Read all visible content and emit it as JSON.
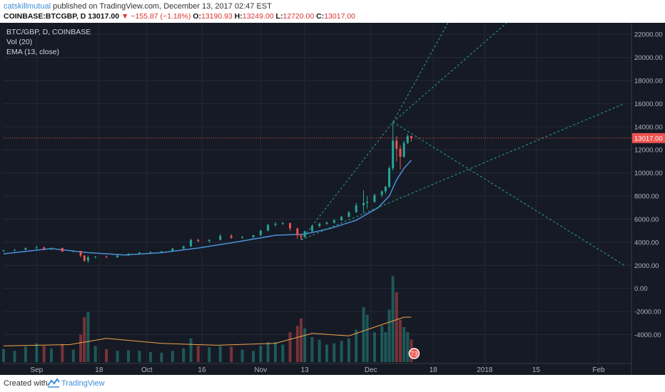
{
  "header": {
    "author": "catskillmutual",
    "published_text": "published on TradingView.com, December 13, 2017 02:47 EST",
    "symbol": "COINBASE:BTCGBP, D",
    "last": "13017.00",
    "change": "−155.87 (−1.18%)",
    "o_label": "O:",
    "o_value": "13190.93",
    "h_label": "H:",
    "h_value": "13249.00",
    "l_label": "L:",
    "l_value": "12720.00",
    "c_label": "C:",
    "c_value": "13017.00"
  },
  "legend": {
    "line1": "BTC/GBP, D, COINBASE",
    "line2": "Vol (20)",
    "line3": "EMA (13, close)"
  },
  "footer": {
    "created_with": "Created with",
    "brand": "TradingView"
  },
  "chart_data": {
    "type": "candlestick",
    "symbol": "BTC/GBP",
    "interval": "D",
    "exchange": "COINBASE",
    "yticks": [
      "22000.00",
      "20000.00",
      "18000.00",
      "16000.00",
      "14000.00",
      "12000.00",
      "10000.00",
      "8000.00",
      "6000.00",
      "4000.00",
      "2000.00",
      "0.00",
      "-2000.00",
      "-4000.00"
    ],
    "ylim": [
      -6500,
      23000
    ],
    "xticks": [
      {
        "label": "Sep",
        "x": "2017-09-01"
      },
      {
        "label": "18",
        "x": "2017-09-18"
      },
      {
        "label": "Oct",
        "x": "2017-10-01"
      },
      {
        "label": "16",
        "x": "2017-10-16"
      },
      {
        "label": "Nov",
        "x": "2017-11-01"
      },
      {
        "label": "13",
        "x": "2017-11-13"
      },
      {
        "label": "Dec",
        "x": "2017-12-01"
      },
      {
        "label": "18",
        "x": "2017-12-18"
      },
      {
        "label": "2018",
        "x": "2018-01-01"
      },
      {
        "label": "15",
        "x": "2018-01-15"
      },
      {
        "label": "Feb",
        "x": "2018-02-01"
      }
    ],
    "x_range": [
      "2017-08-23",
      "2018-02-08"
    ],
    "last_price": 13017,
    "last_price_label": "13017.00",
    "volume_badge": "73",
    "candles": [
      {
        "d": "2017-08-23",
        "o": 3250,
        "h": 3350,
        "l": 3150,
        "c": 3300,
        "v": 1050
      },
      {
        "d": "2017-08-26",
        "o": 3300,
        "h": 3400,
        "l": 3200,
        "c": 3350,
        "v": 900
      },
      {
        "d": "2017-08-29",
        "o": 3350,
        "h": 3550,
        "l": 3300,
        "c": 3500,
        "v": 1250
      },
      {
        "d": "2017-09-01",
        "o": 3500,
        "h": 3700,
        "l": 3400,
        "c": 3550,
        "v": 1500
      },
      {
        "d": "2017-09-03",
        "o": 3550,
        "h": 3650,
        "l": 3300,
        "c": 3400,
        "v": 1300
      },
      {
        "d": "2017-09-05",
        "o": 3400,
        "h": 3550,
        "l": 3300,
        "c": 3500,
        "v": 1100
      },
      {
        "d": "2017-09-08",
        "o": 3500,
        "h": 3550,
        "l": 3150,
        "c": 3200,
        "v": 1450
      },
      {
        "d": "2017-09-11",
        "o": 3200,
        "h": 3300,
        "l": 3100,
        "c": 3250,
        "v": 1000
      },
      {
        "d": "2017-09-13",
        "o": 3250,
        "h": 3250,
        "l": 2700,
        "c": 2850,
        "v": 2200
      },
      {
        "d": "2017-09-14",
        "o": 2850,
        "h": 2900,
        "l": 2300,
        "c": 2400,
        "v": 3600
      },
      {
        "d": "2017-09-15",
        "o": 2400,
        "h": 2850,
        "l": 2200,
        "c": 2700,
        "v": 4000
      },
      {
        "d": "2017-09-17",
        "o": 2700,
        "h": 2800,
        "l": 2600,
        "c": 2750,
        "v": 1300
      },
      {
        "d": "2017-09-20",
        "o": 2750,
        "h": 2850,
        "l": 2650,
        "c": 2700,
        "v": 1050
      },
      {
        "d": "2017-09-23",
        "o": 2700,
        "h": 2900,
        "l": 2650,
        "c": 2850,
        "v": 900
      },
      {
        "d": "2017-09-26",
        "o": 2850,
        "h": 3050,
        "l": 2800,
        "c": 3000,
        "v": 950
      },
      {
        "d": "2017-09-29",
        "o": 3000,
        "h": 3150,
        "l": 2950,
        "c": 3100,
        "v": 900
      },
      {
        "d": "2017-10-02",
        "o": 3100,
        "h": 3200,
        "l": 3050,
        "c": 3150,
        "v": 800
      },
      {
        "d": "2017-10-05",
        "o": 3150,
        "h": 3250,
        "l": 3100,
        "c": 3200,
        "v": 750
      },
      {
        "d": "2017-10-08",
        "o": 3200,
        "h": 3500,
        "l": 3150,
        "c": 3450,
        "v": 900
      },
      {
        "d": "2017-10-11",
        "o": 3450,
        "h": 3700,
        "l": 3400,
        "c": 3650,
        "v": 1100
      },
      {
        "d": "2017-10-13",
        "o": 3650,
        "h": 4300,
        "l": 3600,
        "c": 4200,
        "v": 1900
      },
      {
        "d": "2017-10-15",
        "o": 4200,
        "h": 4300,
        "l": 4000,
        "c": 4100,
        "v": 1300
      },
      {
        "d": "2017-10-18",
        "o": 4100,
        "h": 4250,
        "l": 3950,
        "c": 4200,
        "v": 1200
      },
      {
        "d": "2017-10-21",
        "o": 4200,
        "h": 4700,
        "l": 4150,
        "c": 4550,
        "v": 1300
      },
      {
        "d": "2017-10-24",
        "o": 4550,
        "h": 4700,
        "l": 4300,
        "c": 4400,
        "v": 1250
      },
      {
        "d": "2017-10-27",
        "o": 4400,
        "h": 4550,
        "l": 4300,
        "c": 4450,
        "v": 1000
      },
      {
        "d": "2017-10-30",
        "o": 4450,
        "h": 4650,
        "l": 4350,
        "c": 4600,
        "v": 900
      },
      {
        "d": "2017-11-01",
        "o": 4600,
        "h": 5100,
        "l": 4550,
        "c": 5000,
        "v": 1300
      },
      {
        "d": "2017-11-03",
        "o": 5000,
        "h": 5600,
        "l": 4950,
        "c": 5500,
        "v": 1600
      },
      {
        "d": "2017-11-05",
        "o": 5500,
        "h": 5750,
        "l": 5350,
        "c": 5600,
        "v": 1600
      },
      {
        "d": "2017-11-07",
        "o": 5600,
        "h": 5800,
        "l": 5500,
        "c": 5650,
        "v": 1400
      },
      {
        "d": "2017-11-09",
        "o": 5650,
        "h": 5700,
        "l": 5000,
        "c": 5200,
        "v": 2400
      },
      {
        "d": "2017-11-11",
        "o": 5200,
        "h": 5250,
        "l": 4300,
        "c": 4600,
        "v": 2900
      },
      {
        "d": "2017-11-12",
        "o": 4600,
        "h": 4700,
        "l": 4200,
        "c": 4450,
        "v": 3500
      },
      {
        "d": "2017-11-13",
        "o": 4450,
        "h": 5000,
        "l": 4400,
        "c": 4950,
        "v": 2700
      },
      {
        "d": "2017-11-15",
        "o": 4950,
        "h": 5500,
        "l": 4900,
        "c": 5400,
        "v": 2000
      },
      {
        "d": "2017-11-17",
        "o": 5400,
        "h": 5700,
        "l": 5300,
        "c": 5600,
        "v": 1800
      },
      {
        "d": "2017-11-19",
        "o": 5600,
        "h": 5800,
        "l": 5500,
        "c": 5700,
        "v": 1400
      },
      {
        "d": "2017-11-21",
        "o": 5700,
        "h": 6000,
        "l": 5600,
        "c": 5900,
        "v": 1500
      },
      {
        "d": "2017-11-23",
        "o": 5900,
        "h": 6300,
        "l": 5850,
        "c": 6200,
        "v": 1700
      },
      {
        "d": "2017-11-25",
        "o": 6200,
        "h": 6700,
        "l": 6150,
        "c": 6600,
        "v": 1900
      },
      {
        "d": "2017-11-27",
        "o": 6600,
        "h": 7400,
        "l": 6550,
        "c": 7200,
        "v": 2600
      },
      {
        "d": "2017-11-29",
        "o": 7200,
        "h": 8500,
        "l": 6500,
        "c": 7400,
        "v": 4400
      },
      {
        "d": "2017-11-30",
        "o": 7400,
        "h": 8000,
        "l": 6900,
        "c": 7500,
        "v": 3800
      },
      {
        "d": "2017-12-02",
        "o": 7500,
        "h": 8200,
        "l": 7400,
        "c": 8100,
        "v": 2400
      },
      {
        "d": "2017-12-04",
        "o": 8100,
        "h": 8500,
        "l": 7900,
        "c": 8400,
        "v": 2900
      },
      {
        "d": "2017-12-05",
        "o": 8400,
        "h": 8900,
        "l": 8200,
        "c": 8800,
        "v": 2400
      },
      {
        "d": "2017-12-06",
        "o": 8800,
        "h": 10600,
        "l": 8700,
        "c": 10400,
        "v": 4200
      },
      {
        "d": "2017-12-07",
        "o": 10400,
        "h": 14400,
        "l": 10200,
        "c": 12800,
        "v": 6900
      },
      {
        "d": "2017-12-08",
        "o": 12800,
        "h": 13200,
        "l": 11000,
        "c": 12100,
        "v": 5600
      },
      {
        "d": "2017-12-09",
        "o": 12100,
        "h": 12400,
        "l": 10300,
        "c": 11400,
        "v": 3400
      },
      {
        "d": "2017-12-10",
        "o": 11400,
        "h": 12800,
        "l": 11300,
        "c": 12600,
        "v": 2800
      },
      {
        "d": "2017-12-11",
        "o": 12600,
        "h": 13400,
        "l": 12500,
        "c": 13200,
        "v": 2400
      },
      {
        "d": "2017-12-12",
        "o": 13190.93,
        "h": 13249,
        "l": 12720,
        "c": 13017,
        "v": 1800
      }
    ],
    "ema": [
      [
        "2017-08-23",
        3000
      ],
      [
        "2017-09-05",
        3450
      ],
      [
        "2017-09-15",
        3100
      ],
      [
        "2017-09-25",
        2900
      ],
      [
        "2017-10-05",
        3100
      ],
      [
        "2017-10-15",
        3500
      ],
      [
        "2017-10-25",
        4000
      ],
      [
        "2017-11-05",
        4600
      ],
      [
        "2017-11-13",
        4700
      ],
      [
        "2017-11-20",
        5200
      ],
      [
        "2017-11-27",
        5900
      ],
      [
        "2017-12-03",
        7000
      ],
      [
        "2017-12-06",
        8000
      ],
      [
        "2017-12-08",
        9400
      ],
      [
        "2017-12-10",
        10400
      ],
      [
        "2017-12-12",
        11100
      ]
    ],
    "vol_ma": [
      [
        "2017-08-23",
        1300
      ],
      [
        "2017-09-10",
        1400
      ],
      [
        "2017-09-20",
        1900
      ],
      [
        "2017-10-05",
        1500
      ],
      [
        "2017-10-20",
        1350
      ],
      [
        "2017-11-05",
        1500
      ],
      [
        "2017-11-15",
        2300
      ],
      [
        "2017-11-25",
        2100
      ],
      [
        "2017-12-01",
        2700
      ],
      [
        "2017-12-06",
        3200
      ],
      [
        "2017-12-10",
        3600
      ],
      [
        "2017-12-12",
        3600
      ]
    ],
    "trend_lines": [
      {
        "from": [
          "2017-11-12",
          4200
        ],
        "to": [
          "2018-02-08",
          16000
        ]
      },
      {
        "from": [
          "2017-12-07",
          14400
        ],
        "to": [
          "2018-02-08",
          2000
        ]
      },
      {
        "from": [
          "2017-11-12",
          4200
        ],
        "to": [
          "2017-12-07",
          14400
        ]
      },
      {
        "from": [
          "2017-12-07",
          14400
        ],
        "to": [
          "2017-12-22",
          23000
        ]
      },
      {
        "from": [
          "2017-12-07",
          14400
        ],
        "to": [
          "2018-01-07",
          23000
        ]
      }
    ]
  }
}
